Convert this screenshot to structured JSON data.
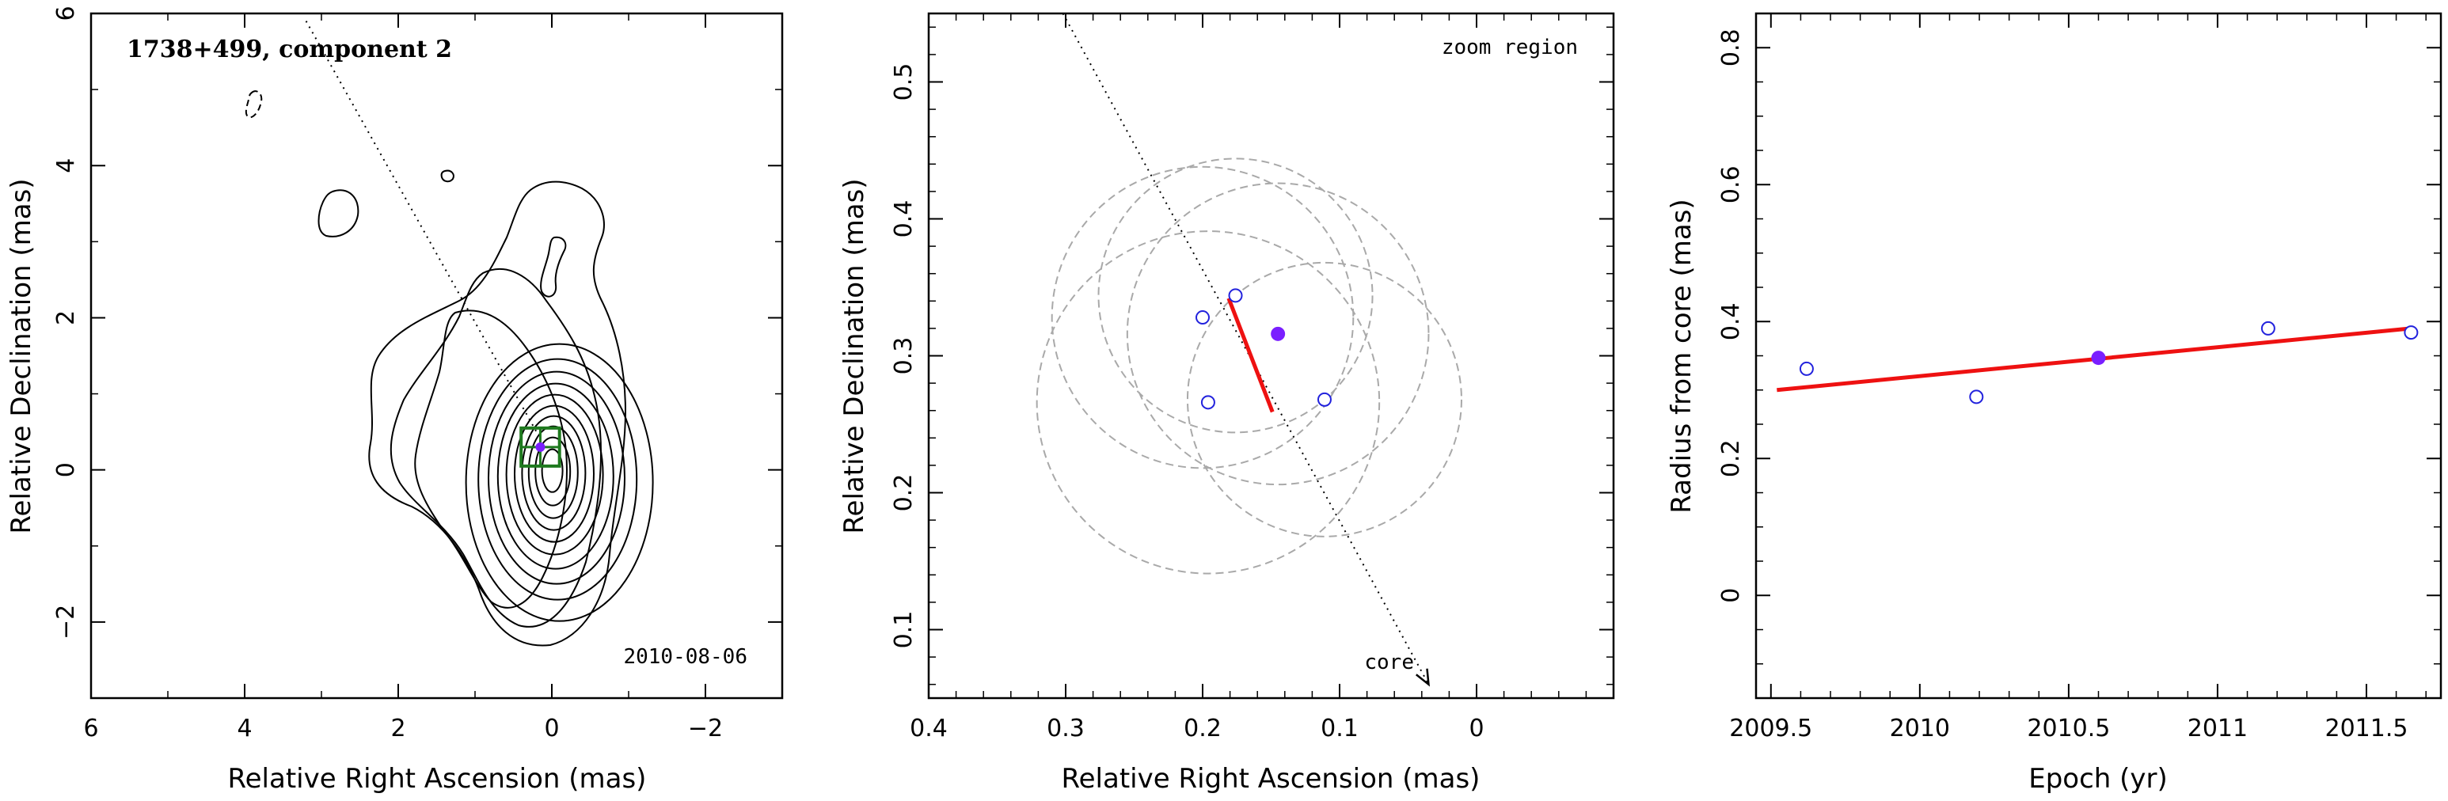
{
  "chart_data": [
    {
      "type": "contour",
      "title": "1738+499, component 2",
      "xlabel": "Relative Right Ascension (mas)",
      "ylabel": "Relative Declination (mas)",
      "xlim": [
        6,
        -3
      ],
      "ylim": [
        -3,
        6
      ],
      "x_ticks": [
        6,
        4,
        2,
        0,
        -2
      ],
      "y_ticks": [
        -2,
        0,
        2,
        4,
        6
      ],
      "x_tick_labels": [
        "6",
        "4",
        "2",
        "0",
        "−2"
      ],
      "y_tick_labels": [
        "−2",
        "0",
        "2",
        "4",
        "6"
      ],
      "date_label": "2010-08-06",
      "core_position": [
        0,
        0
      ],
      "component_position": [
        0.15,
        0.3
      ],
      "zoom_box": {
        "ra": [
          0.4,
          -0.1
        ],
        "dec": [
          0.05,
          0.55
        ]
      },
      "trajectory_line": {
        "from": [
          3.2,
          5.9
        ],
        "to": [
          0.2,
          0.5
        ]
      },
      "colors": {
        "box": "#1f7a1f",
        "component": "#7a1fff",
        "contour": "#000000"
      }
    },
    {
      "type": "scatter",
      "annotation": "zoom region",
      "xlabel": "Relative Right Ascension (mas)",
      "ylabel": "Relative Declination (mas)",
      "xlim": [
        0.4,
        -0.1
      ],
      "ylim": [
        0.05,
        0.55
      ],
      "x_ticks": [
        0.4,
        0.3,
        0.2,
        0.1,
        0
      ],
      "y_ticks": [
        0.1,
        0.2,
        0.3,
        0.4,
        0.5
      ],
      "x_tick_labels": [
        "0.4",
        "0.3",
        "0.2",
        "0.1",
        "0"
      ],
      "y_tick_labels": [
        "0.1",
        "0.2",
        "0.3",
        "0.4",
        "0.5"
      ],
      "epochs_positions": [
        {
          "ra": 0.2,
          "dec": 0.328
        },
        {
          "ra": 0.176,
          "dec": 0.344
        },
        {
          "ra": 0.196,
          "dec": 0.266
        },
        {
          "ra": 0.111,
          "dec": 0.268
        }
      ],
      "highlighted_position": {
        "ra": 0.145,
        "dec": 0.316
      },
      "error_circles": [
        {
          "ra": 0.2,
          "dec": 0.328,
          "r": 0.11
        },
        {
          "ra": 0.176,
          "dec": 0.344,
          "r": 0.1
        },
        {
          "ra": 0.196,
          "dec": 0.266,
          "r": 0.125
        },
        {
          "ra": 0.111,
          "dec": 0.268,
          "r": 0.1
        },
        {
          "ra": 0.145,
          "dec": 0.316,
          "r": 0.11
        }
      ],
      "fit_segment": {
        "from": {
          "ra": 0.181,
          "dec": 0.342
        },
        "to": {
          "ra": 0.149,
          "dec": 0.259
        }
      },
      "core_arrow": {
        "from": {
          "ra": 0.302,
          "dec": 0.55
        },
        "to": {
          "ra": 0.035,
          "dec": 0.06
        },
        "label": "core"
      },
      "colors": {
        "circles": "#a9a9a9",
        "points": "#2222dd",
        "highlight": "#7a1fff",
        "fit": "#ee1111"
      }
    },
    {
      "type": "scatter",
      "xlabel": "Epoch (yr)",
      "ylabel": "Radius from core (mas)",
      "xlim": [
        2009.45,
        2011.75
      ],
      "ylim": [
        -0.15,
        0.85
      ],
      "x_ticks": [
        2009.5,
        2010,
        2010.5,
        2011,
        2011.5
      ],
      "y_ticks": [
        0,
        0.2,
        0.4,
        0.6,
        0.8
      ],
      "x_tick_labels": [
        "2009.5",
        "2010",
        "2010.5",
        "2011",
        "2011.5"
      ],
      "y_tick_labels": [
        "0",
        "0.2",
        "0.4",
        "0.6",
        "0.8"
      ],
      "points": [
        {
          "x": 2009.62,
          "y": 0.331
        },
        {
          "x": 2010.19,
          "y": 0.29
        },
        {
          "x": 2011.17,
          "y": 0.39
        },
        {
          "x": 2011.65,
          "y": 0.384
        }
      ],
      "highlighted_point": {
        "x": 2010.6,
        "y": 0.347
      },
      "fit_line": {
        "x": [
          2009.52,
          2011.65
        ],
        "y": [
          0.3,
          0.39
        ]
      },
      "colors": {
        "points": "#2222dd",
        "highlight": "#7a1fff",
        "fit": "#ee1111"
      }
    }
  ]
}
